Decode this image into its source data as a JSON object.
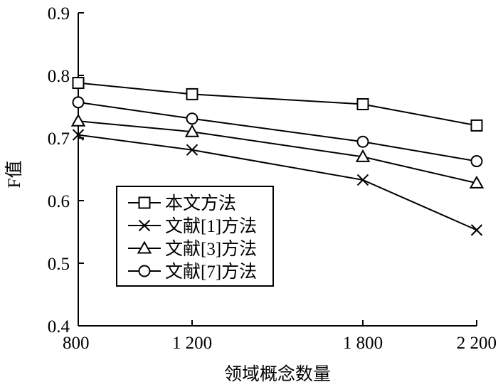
{
  "chart_data": {
    "type": "line",
    "xlabel": "领域概念数量",
    "ylabel": "F值",
    "x": [
      800,
      1200,
      1800,
      2200
    ],
    "x_tick_labels": [
      "800",
      "1 200",
      "1 800",
      "2 200"
    ],
    "ylim": [
      0.4,
      0.9
    ],
    "y_ticks": [
      0.4,
      0.5,
      0.6,
      0.7,
      0.8,
      0.9
    ],
    "y_tick_labels": [
      "0.4",
      "0.5",
      "0.6",
      "0.7",
      "0.8",
      "0.9"
    ],
    "grid": false,
    "legend_position": "lower-left",
    "series": [
      {
        "name": "本文方法",
        "marker": "square",
        "values": [
          0.788,
          0.77,
          0.754,
          0.72
        ]
      },
      {
        "name": "文献[1]方法",
        "marker": "x",
        "values": [
          0.705,
          0.681,
          0.633,
          0.553
        ]
      },
      {
        "name": "文献[3]方法",
        "marker": "triangle",
        "values": [
          0.727,
          0.71,
          0.67,
          0.628
        ]
      },
      {
        "name": "文献[7]方法",
        "marker": "circle",
        "values": [
          0.757,
          0.731,
          0.694,
          0.663
        ]
      }
    ]
  }
}
